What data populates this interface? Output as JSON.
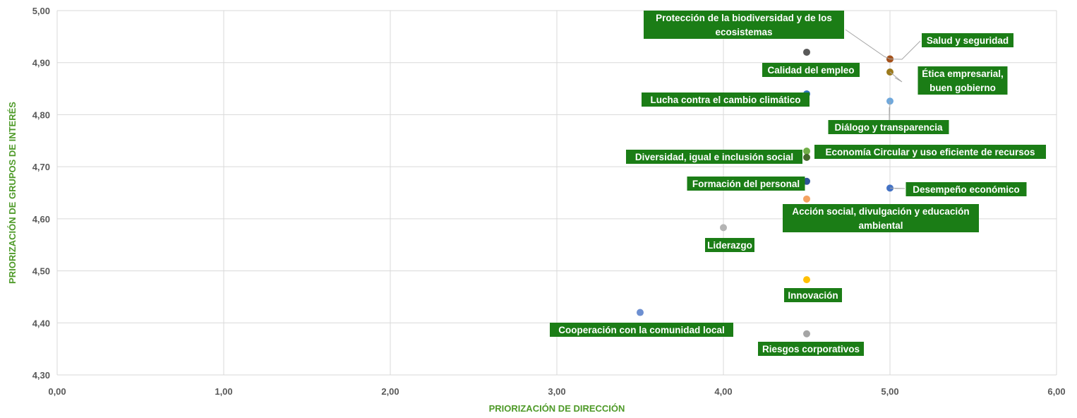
{
  "chart_data": {
    "type": "scatter",
    "xlabel": "PRIORIZACIÓN DE DIRECCIÓN",
    "ylabel": "PRIORIZACIÓN DE GRUPOS DE INTERÉS",
    "xlim": [
      0,
      6
    ],
    "ylim": [
      4.3,
      5.0
    ],
    "x_ticks": [
      "0,00",
      "1,00",
      "2,00",
      "3,00",
      "4,00",
      "5,00",
      "6,00"
    ],
    "y_ticks": [
      "4,30",
      "4,40",
      "4,50",
      "4,60",
      "4,70",
      "4,80",
      "4,90",
      "5,00"
    ],
    "grid": true,
    "label_background": "#1b7d16",
    "points": [
      {
        "label": "Protección de la biodiversidad y de los ecosistemas",
        "x": 5.0,
        "y": 4.907,
        "color": "#9c4b16"
      },
      {
        "label": "Salud y seguridad",
        "x": 5.0,
        "y": 4.907,
        "color": "#a5521c"
      },
      {
        "label": "Calidad del empleo",
        "x": 4.5,
        "y": 4.92,
        "color": "#595959"
      },
      {
        "label": "Ética empresarial, buen gobierno",
        "x": 5.0,
        "y": 4.882,
        "color": "#9c7a1c"
      },
      {
        "label": "Lucha contra el cambio climático",
        "x": 4.5,
        "y": 4.84,
        "color": "#2e75b6"
      },
      {
        "label": "Diálogo y transparencia",
        "x": 5.0,
        "y": 4.826,
        "color": "#6fa8dc"
      },
      {
        "label": "Economía Circular y uso eficiente de recursos",
        "x": 4.5,
        "y": 4.73,
        "color": "#70ad47"
      },
      {
        "label": "Diversidad, igual e inclusión social",
        "x": 4.5,
        "y": 4.718,
        "color": "#43682b"
      },
      {
        "label": "Formación del personal",
        "x": 4.5,
        "y": 4.672,
        "color": "#2f5597"
      },
      {
        "label": "Desempeño económico",
        "x": 5.0,
        "y": 4.659,
        "color": "#4472c4"
      },
      {
        "label": "Acción social, divulgación y educación ambiental",
        "x": 4.5,
        "y": 4.638,
        "color": "#f4a261"
      },
      {
        "label": "Liderazgo",
        "x": 4.0,
        "y": 4.583,
        "color": "#b4b4b4"
      },
      {
        "label": "Innovación",
        "x": 4.5,
        "y": 4.483,
        "color": "#ffc000"
      },
      {
        "label": "Cooperación con la comunidad local",
        "x": 3.5,
        "y": 4.42,
        "color": "#6d8fd1"
      },
      {
        "label": "Riesgos corporativos",
        "x": 4.5,
        "y": 4.379,
        "color": "#a5a5a5"
      }
    ]
  }
}
